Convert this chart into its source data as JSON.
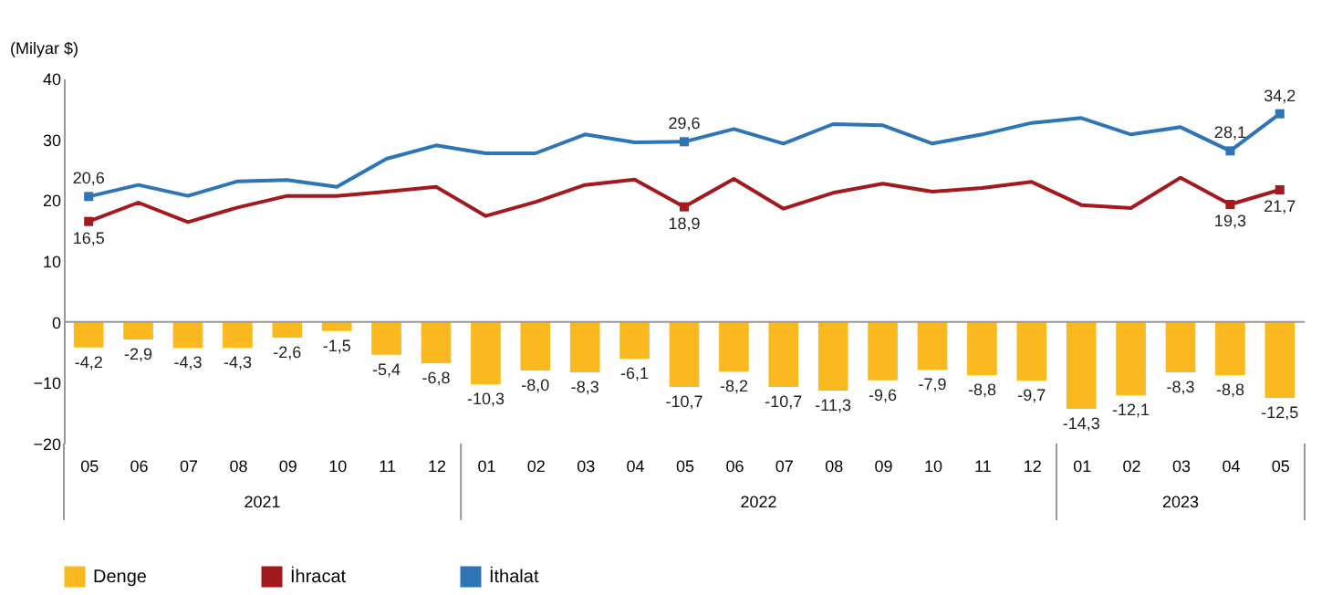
{
  "chart_data": {
    "type": "bar",
    "ylabel": "(Milyar $)",
    "categories": [
      "05",
      "06",
      "07",
      "08",
      "09",
      "10",
      "11",
      "12",
      "01",
      "02",
      "03",
      "04",
      "05",
      "06",
      "07",
      "08",
      "09",
      "10",
      "11",
      "12",
      "01",
      "02",
      "03",
      "04",
      "05"
    ],
    "annotations": [
      "2021",
      "2022",
      "2023"
    ],
    "series": [
      {
        "name": "Denge",
        "color": "#f9b91f",
        "values": [
          -4.2,
          -2.9,
          -4.3,
          -4.3,
          -2.6,
          -1.5,
          -5.4,
          -6.8,
          -10.3,
          -8.0,
          -8.3,
          -6.1,
          -10.7,
          -8.2,
          -10.7,
          -11.3,
          -9.6,
          -7.9,
          -8.8,
          -9.7,
          -14.3,
          -12.1,
          -8.3,
          -8.8,
          -12.5
        ],
        "value_labels": [
          "-4,2",
          "-2,9",
          "-4,3",
          "-4,3",
          "-2,6",
          "-1,5",
          "-5,4",
          "-6,8",
          "-10,3",
          "-8,0",
          "-8,3",
          "-6,1",
          "-10,7",
          "-8,2",
          "-10,7",
          "-11,3",
          "-9,6",
          "-7,9",
          "-8,8",
          "-9,7",
          "-14,3",
          "-12,1",
          "-8,3",
          "-8,8",
          "-12,5"
        ]
      },
      {
        "name": "İhracat",
        "type": "line",
        "color": "#a31a1e",
        "values": [
          16.5,
          19.6,
          16.4,
          18.8,
          20.7,
          20.7,
          21.4,
          22.2,
          17.4,
          19.7,
          22.5,
          23.4,
          18.9,
          23.5,
          18.6,
          21.2,
          22.7,
          21.4,
          22.0,
          23.0,
          19.2,
          18.7,
          23.7,
          19.3,
          21.7
        ],
        "value_labels": [
          "16,5",
          null,
          null,
          null,
          null,
          null,
          null,
          null,
          null,
          null,
          null,
          null,
          "18,9",
          null,
          null,
          null,
          null,
          null,
          null,
          null,
          null,
          null,
          null,
          "19,3",
          "21,7"
        ]
      },
      {
        "name": "İthalat",
        "type": "line",
        "color": "#2e75b6",
        "values": [
          20.6,
          22.5,
          20.7,
          23.1,
          23.3,
          22.2,
          26.8,
          29.0,
          27.7,
          27.7,
          30.8,
          29.5,
          29.6,
          31.7,
          29.3,
          32.5,
          32.3,
          29.3,
          30.8,
          32.7,
          33.5,
          30.8,
          32.0,
          28.1,
          34.2
        ],
        "value_labels": [
          "20,6",
          null,
          null,
          null,
          null,
          null,
          null,
          null,
          null,
          null,
          null,
          null,
          "29,6",
          null,
          null,
          null,
          null,
          null,
          null,
          null,
          null,
          null,
          null,
          "28,1",
          "34,2"
        ]
      }
    ],
    "ylim": [
      -20,
      40
    ],
    "yticks": [
      -20,
      -10,
      0,
      10,
      20,
      30,
      40
    ],
    "legend": "bottom",
    "line_style": "solid"
  }
}
